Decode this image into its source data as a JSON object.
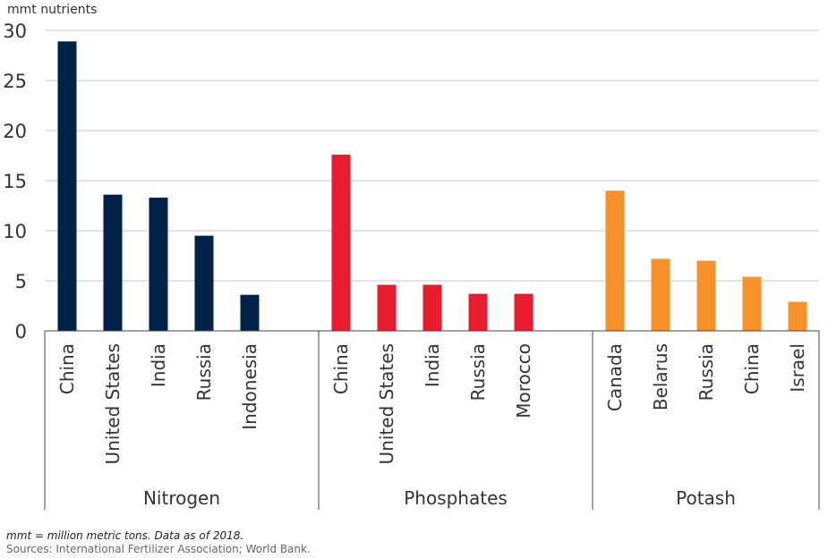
{
  "chart_data": {
    "type": "bar",
    "ylabel": "mmt nutrients",
    "ylim": [
      0,
      30
    ],
    "yticks": [
      0,
      5,
      10,
      15,
      20,
      25,
      30
    ],
    "grid": true,
    "legend": "none",
    "groups": [
      {
        "name": "Nitrogen",
        "color": "#012248",
        "categories": [
          "China",
          "United States",
          "India",
          "Russia",
          "Indonesia"
        ],
        "values": [
          28.9,
          13.6,
          13.3,
          9.5,
          3.6
        ]
      },
      {
        "name": "Phosphates",
        "color": "#e81c2e",
        "categories": [
          "China",
          "United States",
          "India",
          "Russia",
          "Morocco"
        ],
        "values": [
          17.6,
          4.6,
          4.6,
          3.7,
          3.7
        ]
      },
      {
        "name": "Potash",
        "color": "#f7922a",
        "categories": [
          "Canada",
          "Belarus",
          "Russia",
          "China",
          "Israel"
        ],
        "values": [
          14.0,
          7.2,
          7.0,
          5.4,
          2.9
        ]
      }
    ]
  },
  "notes": {
    "footnote": "mmt = million metric tons. Data as of 2018.",
    "sources": "Sources: International Fertilizer Association; World Bank."
  }
}
